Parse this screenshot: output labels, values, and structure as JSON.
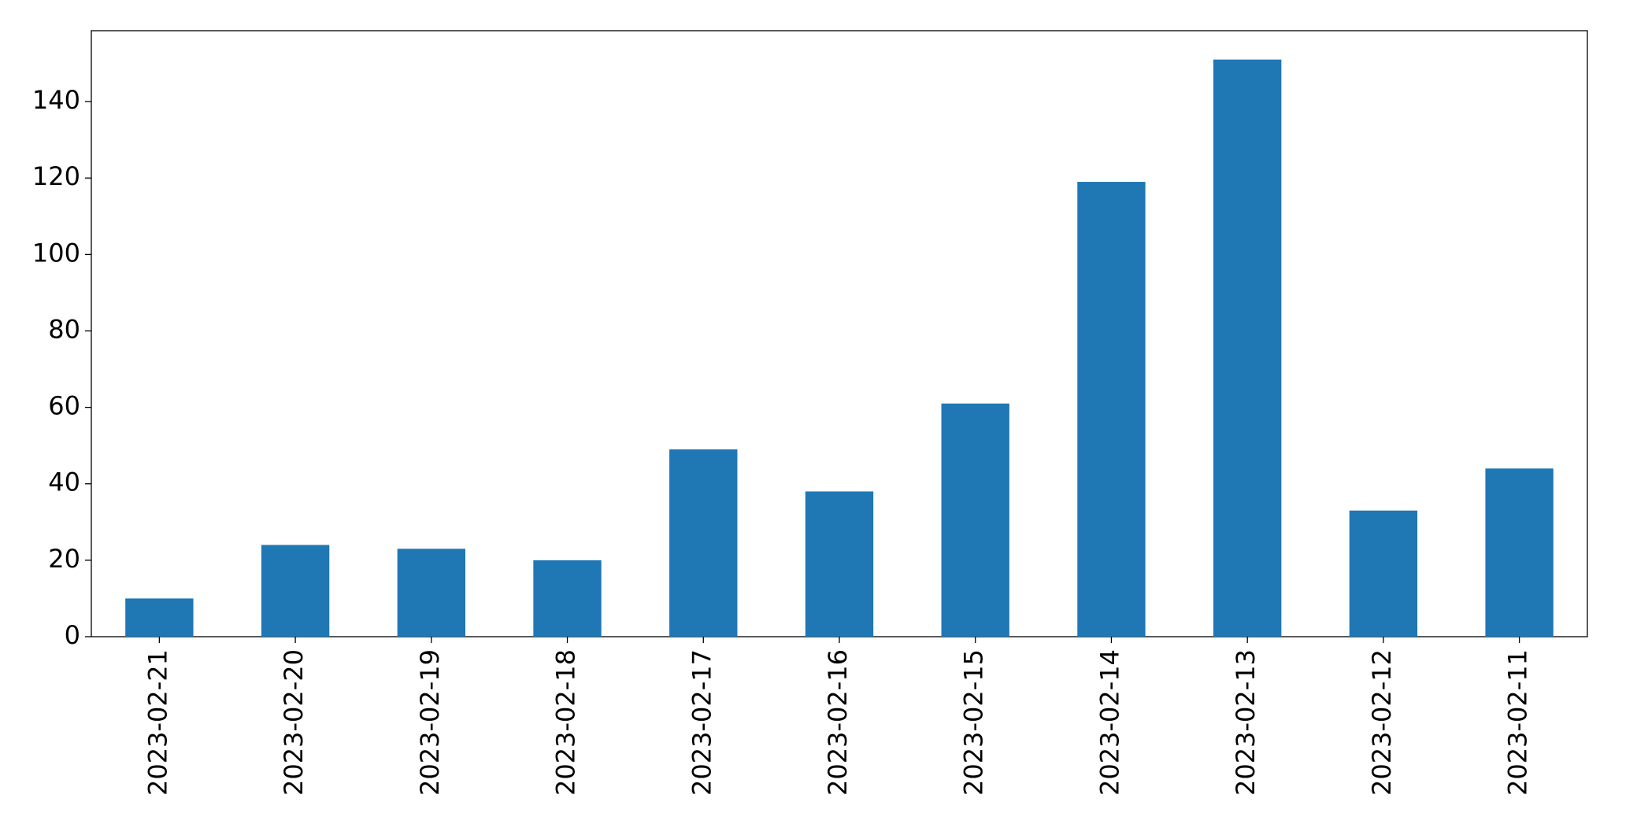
{
  "chart_data": {
    "type": "bar",
    "categories": [
      "2023-02-21",
      "2023-02-20",
      "2023-02-19",
      "2023-02-18",
      "2023-02-17",
      "2023-02-16",
      "2023-02-15",
      "2023-02-14",
      "2023-02-13",
      "2023-02-12",
      "2023-02-11"
    ],
    "values": [
      10,
      24,
      23,
      20,
      49,
      38,
      61,
      119,
      151,
      33,
      44
    ],
    "color": "#1f77b4",
    "ylim": [
      0,
      158.55
    ],
    "yticks": [
      0,
      20,
      40,
      60,
      80,
      100,
      120,
      140
    ],
    "grid": false
  }
}
